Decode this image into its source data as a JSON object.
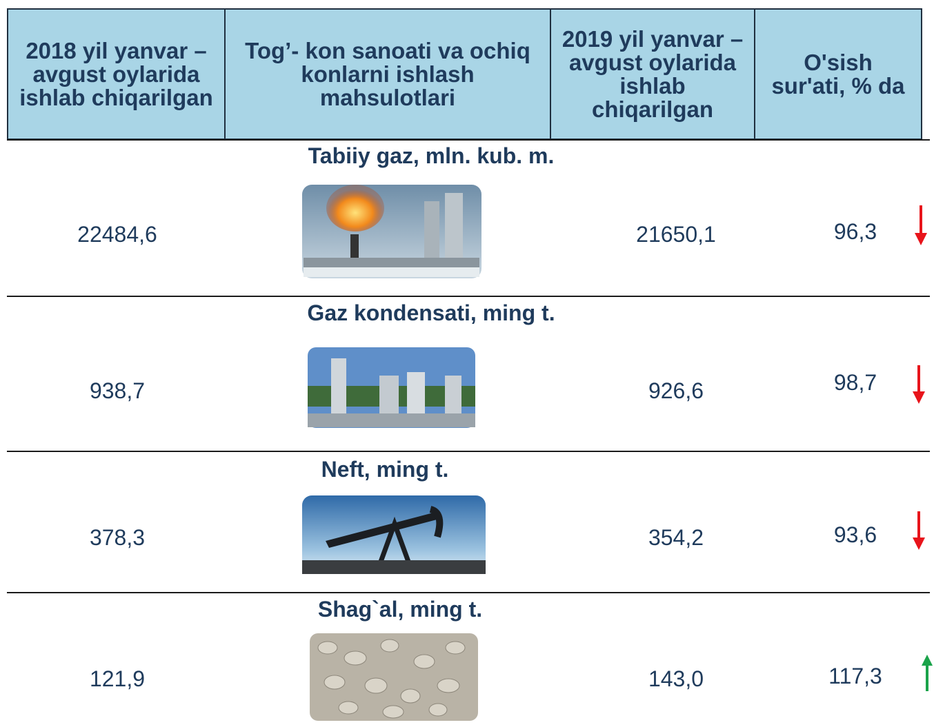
{
  "header": [
    "2018 yil yanvar – avgust oylarida ishlab chiqarilgan",
    "Tog’- kon sanoati va ochiq konlarni ishlash mahsulotlari",
    "2019 yil yanvar – avgust oylarida ishlab chiqarilgan",
    "O'sish sur'ati, % da"
  ],
  "rows": [
    {
      "title": "Tabiiy gaz, mln. kub. m.",
      "y2018": "22484,6",
      "y2019": "21650,1",
      "growth": "96,3"
    },
    {
      "title": "Gaz kondensati, ming t.",
      "y2018": "938,7",
      "y2019": "926,6",
      "growth": "98,7"
    },
    {
      "title": "Neft, ming t.",
      "y2018": "378,3",
      "y2019": "354,2",
      "growth": "93,6"
    },
    {
      "title": "Shag`al, ming t.",
      "y2018": "121,9",
      "y2019": "143,0",
      "growth": "117,3"
    }
  ]
}
